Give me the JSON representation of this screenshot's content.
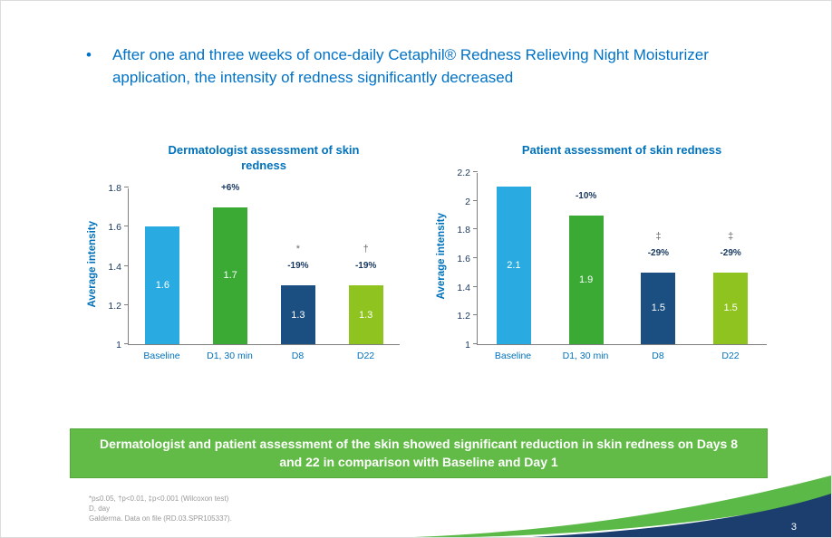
{
  "slide": {
    "bullet": {
      "marker": "•",
      "text": "After one and three weeks of once-daily Cetaphil® Redness Relieving Night Moisturizer application, the intensity of redness significantly decreased"
    }
  },
  "banner": {
    "text": "Dermatologist and patient assessment of the skin showed significant reduction in skin redness on Days 8 and 22 in comparison with Baseline and Day 1"
  },
  "footnotes": {
    "line1": "*p≤0.05, †p<0.01, ‡p<0.001 (Wilcoxon test)",
    "line2": "D, day",
    "line3": "Galderma. Data on file (RD.03.SPR105337)."
  },
  "footer": {
    "page_number": "3"
  },
  "colors": {
    "heading_blue": "#0072c6",
    "title_blue": "#0072bc",
    "axis_navy": "#17375e",
    "bar_light_blue": "#29abe2",
    "bar_green": "#3aaa35",
    "bar_navy": "#1b4f82",
    "bar_lime": "#8fc31f",
    "banner_green": "#62bb46",
    "swoosh_green": "#5bb947",
    "swoosh_navy": "#1c3e6e"
  },
  "chart_data": [
    {
      "type": "bar",
      "title": "Dermatologist assessment of skin redness",
      "ylabel": "Average intensity",
      "xlabel": "",
      "ylim": [
        1,
        1.8
      ],
      "yticks": [
        1,
        1.2,
        1.4,
        1.6,
        1.8
      ],
      "categories": [
        "Baseline",
        "D1, 30 min",
        "D8",
        "D22"
      ],
      "values": [
        1.6,
        1.7,
        1.3,
        1.3
      ],
      "bar_colors": [
        "#29abe2",
        "#3aaa35",
        "#1b4f82",
        "#8fc31f"
      ],
      "annotations": [
        "",
        "+6%",
        "-19%",
        "-19%"
      ],
      "significance": [
        "",
        "",
        "*",
        "†"
      ],
      "grid": "off",
      "legend": "none"
    },
    {
      "type": "bar",
      "title": "Patient assessment of skin redness",
      "ylabel": "Average intensity",
      "xlabel": "",
      "ylim": [
        1,
        2.2
      ],
      "yticks": [
        1,
        1.2,
        1.4,
        1.6,
        1.8,
        2,
        2.2
      ],
      "categories": [
        "Baseline",
        "D1, 30 min",
        "D8",
        "D22"
      ],
      "values": [
        2.1,
        1.9,
        1.5,
        1.5
      ],
      "bar_colors": [
        "#29abe2",
        "#3aaa35",
        "#1b4f82",
        "#8fc31f"
      ],
      "annotations": [
        "",
        "-10%",
        "-29%",
        "-29%"
      ],
      "significance": [
        "",
        "",
        "‡",
        "‡"
      ],
      "grid": "off",
      "legend": "none"
    }
  ]
}
